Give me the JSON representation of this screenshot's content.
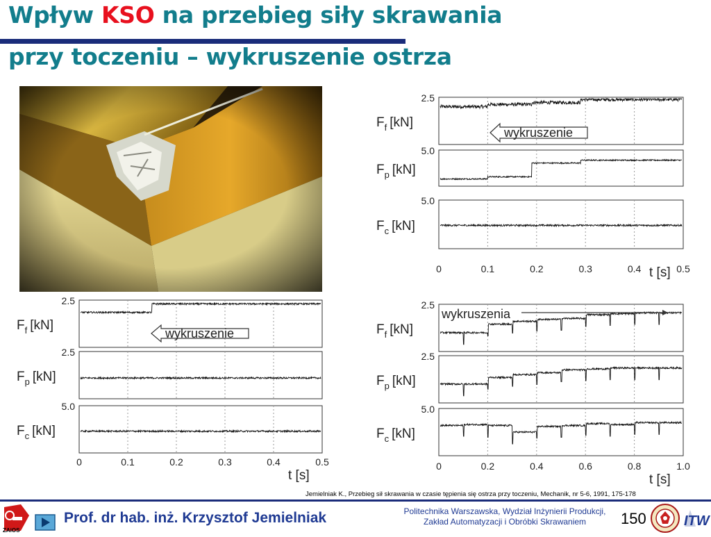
{
  "title": {
    "line1_pre": "Wpływ ",
    "line1_kso": "KSO",
    "line1_post": " na przebieg siły skrawania",
    "line2": "przy toczeniu – wykruszenie ostrza"
  },
  "colors": {
    "title": "#127d8c",
    "kso": "#e8101e",
    "rule": "#1a2c7a",
    "footer_text": "#1f3a93"
  },
  "citation": "Jemielniak K., Przebieg sił skrawania w czasie tępienia się ostrza przy toczeniu, Mechanik, nr 5-6, 1991, 175-178",
  "footer": {
    "author": "Prof. dr hab. inż. Krzysztof Jemielniak",
    "institution_line1": "Politechnika Warszawska, Wydział Inżynierii Produkcji,",
    "institution_line2": "Zakład Automatyzacji i Obróbki Skrawaniem",
    "page": "150",
    "logo_left_text": "ZAiOS",
    "logo_right_text": "ITW"
  },
  "icons": {
    "nav_button": "triangle-play-icon",
    "photo": "cutting-edge-chipping-photo"
  },
  "chart_data": [
    {
      "type": "line",
      "position": "top-right",
      "x_ticks": [
        "0",
        "0.1",
        "0.2",
        "0.3",
        "0.4",
        "0.5"
      ],
      "xlabel": "t [s]",
      "annotation": "wykruszenie",
      "panels": [
        {
          "label_main": "F",
          "label_sub": "f",
          "unit": "[kN]",
          "ylim_top": "2.5",
          "segments": [
            [
              0.0,
              0.1,
              2.0
            ],
            [
              0.1,
              0.19,
              2.12
            ],
            [
              0.19,
              0.29,
              2.22
            ],
            [
              0.29,
              0.5,
              2.38
            ]
          ]
        },
        {
          "label_main": "F",
          "label_sub": "p",
          "unit": "[kN]",
          "ylim_top": "5.0",
          "segments": [
            [
              0.0,
              0.1,
              1.0
            ],
            [
              0.1,
              0.19,
              1.3
            ],
            [
              0.19,
              0.29,
              3.2
            ],
            [
              0.29,
              0.5,
              3.6
            ]
          ]
        },
        {
          "label_main": "F",
          "label_sub": "c",
          "unit": "[kN]",
          "ylim_top": "5.0",
          "segments": [
            [
              0.0,
              0.5,
              2.4
            ]
          ]
        }
      ]
    },
    {
      "type": "line",
      "position": "bottom-left",
      "x_ticks": [
        "0",
        "0.1",
        "0.2",
        "0.3",
        "0.4",
        "0.5"
      ],
      "xlabel": "t [s]",
      "annotation": "wykruszenie",
      "panels": [
        {
          "label_main": "F",
          "label_sub": "f",
          "unit": "[kN]",
          "ylim_top": "2.5",
          "segments": [
            [
              0.0,
              0.15,
              1.85
            ],
            [
              0.15,
              0.5,
              2.3
            ]
          ]
        },
        {
          "label_main": "F",
          "label_sub": "p",
          "unit": "[kN]",
          "ylim_top": "2.5",
          "segments": [
            [
              0.0,
              0.5,
              1.1
            ]
          ]
        },
        {
          "label_main": "F",
          "label_sub": "c",
          "unit": "[kN]",
          "ylim_top": "5.0",
          "segments": [
            [
              0.0,
              0.5,
              2.3
            ]
          ]
        }
      ]
    },
    {
      "type": "line",
      "position": "bottom-right",
      "x_ticks": [
        "0",
        "0.2",
        "0.4",
        "0.6",
        "0.8",
        "1.0"
      ],
      "xlabel": "t [s]",
      "annotation": "wykruszenia",
      "panels": [
        {
          "label_main": "F",
          "label_sub": "f",
          "unit": "[kN]",
          "ylim_top": "2.5",
          "segments": [
            [
              0.0,
              0.1,
              1.0
            ],
            [
              0.1,
              0.2,
              1.0
            ],
            [
              0.2,
              0.3,
              1.45
            ],
            [
              0.3,
              0.4,
              1.6
            ],
            [
              0.4,
              0.5,
              1.7
            ],
            [
              0.5,
              0.6,
              1.75
            ],
            [
              0.6,
              0.7,
              1.95
            ],
            [
              0.7,
              0.8,
              2.0
            ],
            [
              0.8,
              0.9,
              2.05
            ],
            [
              0.9,
              1.0,
              2.05
            ]
          ]
        },
        {
          "label_main": "F",
          "label_sub": "p",
          "unit": "[kN]",
          "ylim_top": "2.5",
          "segments": [
            [
              0.0,
              0.1,
              1.0
            ],
            [
              0.1,
              0.2,
              1.0
            ],
            [
              0.2,
              0.3,
              1.35
            ],
            [
              0.3,
              0.4,
              1.5
            ],
            [
              0.4,
              0.5,
              1.6
            ],
            [
              0.5,
              0.6,
              1.75
            ],
            [
              0.6,
              0.7,
              1.8
            ],
            [
              0.7,
              0.8,
              1.85
            ],
            [
              0.8,
              0.9,
              1.85
            ],
            [
              0.9,
              1.0,
              1.85
            ]
          ]
        },
        {
          "label_main": "F",
          "label_sub": "c",
          "unit": "[kN]",
          "ylim_top": "5.0",
          "segments": [
            [
              0.0,
              0.1,
              3.2
            ],
            [
              0.1,
              0.2,
              3.3
            ],
            [
              0.2,
              0.3,
              3.2
            ],
            [
              0.3,
              0.4,
              2.5
            ],
            [
              0.4,
              0.5,
              3.1
            ],
            [
              0.5,
              0.6,
              3.2
            ],
            [
              0.6,
              0.7,
              3.4
            ],
            [
              0.7,
              0.8,
              3.3
            ],
            [
              0.8,
              0.9,
              3.5
            ],
            [
              0.9,
              1.0,
              3.5
            ]
          ]
        }
      ]
    }
  ]
}
